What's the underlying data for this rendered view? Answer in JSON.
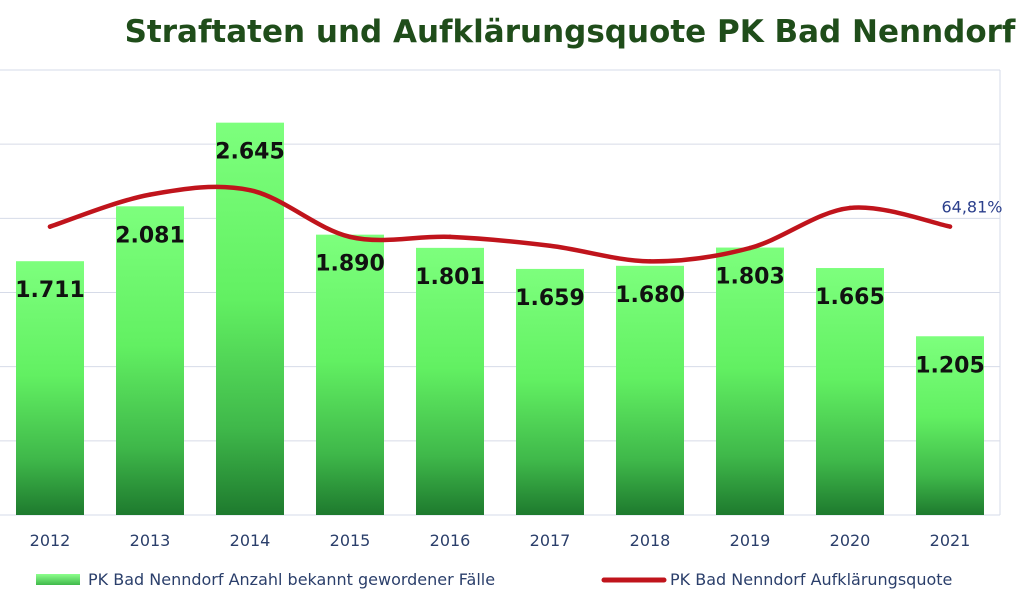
{
  "chart_data": {
    "type": "bar",
    "title": "Straftaten und Aufklärungsquote PK Bad Nenndorf",
    "categories": [
      "2012",
      "2013",
      "2014",
      "2015",
      "2016",
      "2017",
      "2018",
      "2019",
      "2020",
      "2021"
    ],
    "series": [
      {
        "name": "PK Bad Nenndorf Anzahl bekannt gewordener Fälle",
        "type": "bar",
        "values": [
          1711,
          2081,
          2645,
          1890,
          1801,
          1659,
          1680,
          1803,
          1665,
          1205
        ],
        "labels": [
          "1.711",
          "2.081",
          "2.645",
          "1.890",
          "1.801",
          "1.659",
          "1.680",
          "1.803",
          "1.665",
          "1.205"
        ],
        "color": "#5fe85f"
      },
      {
        "name": "PK Bad Nenndorf Aufklärungsquote",
        "type": "line",
        "smooth": true,
        "values": [
          0.648,
          0.72,
          0.73,
          0.625,
          0.625,
          0.605,
          0.57,
          0.6,
          0.69,
          0.6481
        ],
        "labels": [
          "",
          "",
          "",
          "",
          "",
          "",
          "",
          "",
          "",
          "64,81%"
        ],
        "color": "#c0141c"
      }
    ],
    "ylim": [
      0,
      3000
    ],
    "y2lim": [
      0,
      1
    ],
    "grid": true,
    "legend": "bottom"
  }
}
